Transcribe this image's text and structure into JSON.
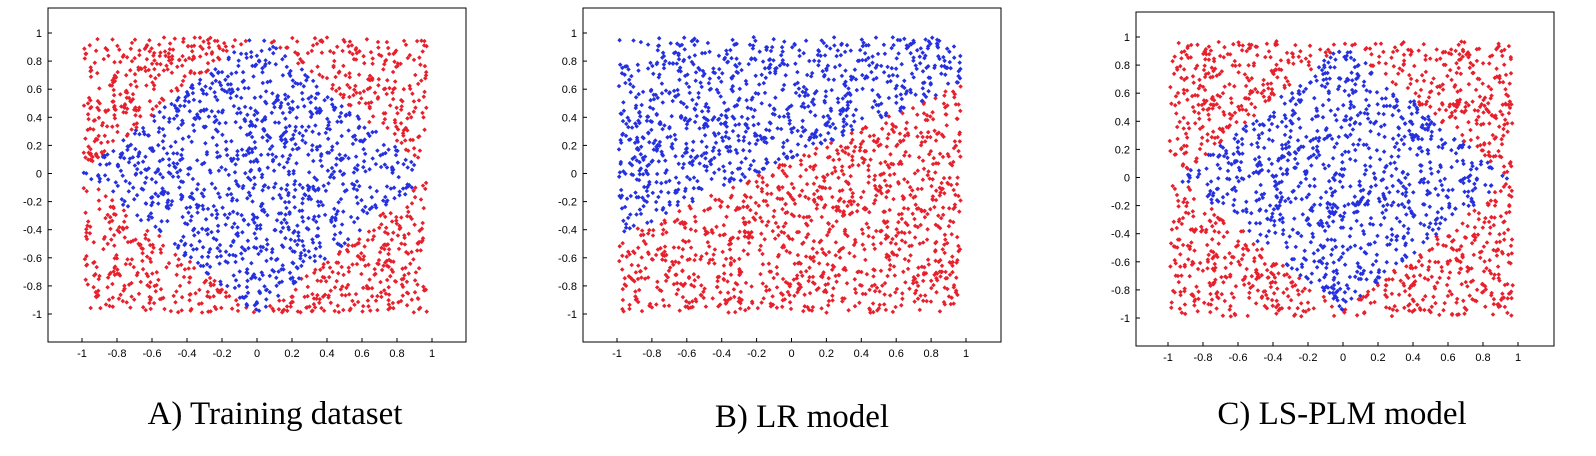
{
  "colors": {
    "positive": "#e8202c",
    "negative": "#2530e0"
  },
  "chart_data": [
    {
      "type": "scatter",
      "title": "",
      "caption": "A) Training dataset",
      "xlabel": "",
      "ylabel": "",
      "xlim": [
        -1,
        1
      ],
      "ylim": [
        -1,
        1
      ],
      "xticks": [
        "-1",
        "-0.8",
        "-0.6",
        "-0.4",
        "-0.2",
        "0",
        "0.2",
        "0.4",
        "0.6",
        "0.8",
        "1"
      ],
      "yticks": [
        "1",
        "0.8",
        "0.6",
        "0.4",
        "0.2",
        "0",
        "-0.2",
        "-0.4",
        "-0.6",
        "-0.8",
        "-1"
      ],
      "grid": false,
      "n_points": 2000,
      "boundary": "blue points inside the diamond |x| + |y| < 1, red points outside",
      "series": [
        {
          "color": "red",
          "region": "|x| + |y| >= 1"
        },
        {
          "color": "blue",
          "region": "|x| + |y| < 1"
        }
      ]
    },
    {
      "type": "scatter",
      "title": "",
      "caption": "B) LR model",
      "xlabel": "",
      "ylabel": "",
      "xlim": [
        -1,
        1
      ],
      "ylim": [
        -1,
        1
      ],
      "xticks": [
        "-1",
        "-0.8",
        "-0.6",
        "-0.4",
        "-0.2",
        "0",
        "0.2",
        "0.4",
        "0.6",
        "0.8",
        "1"
      ],
      "yticks": [
        "1",
        "0.8",
        "0.6",
        "0.4",
        "0.2",
        "0",
        "-0.2",
        "-0.4",
        "-0.6",
        "-0.8",
        "-1"
      ],
      "grid": false,
      "n_points": 2000,
      "boundary": "linear boundary y = 0.55 x + 0.1; blue above, red below",
      "series": [
        {
          "color": "red",
          "region": "y < 0.55x + 0.1"
        },
        {
          "color": "blue",
          "region": "y >= 0.55x + 0.1"
        }
      ]
    },
    {
      "type": "scatter",
      "title": "",
      "caption": "C) LS-PLM model",
      "xlabel": "",
      "ylabel": "",
      "xlim": [
        -1,
        1
      ],
      "ylim": [
        -1,
        1
      ],
      "xticks": [
        "-1",
        "-0.8",
        "-0.6",
        "-0.4",
        "-0.2",
        "0",
        "0.2",
        "0.4",
        "0.6",
        "0.8",
        "1"
      ],
      "yticks": [
        "1",
        "0.8",
        "0.6",
        "0.4",
        "0.2",
        "0",
        "-0.2",
        "-0.4",
        "-0.6",
        "-0.8",
        "-1"
      ],
      "grid": false,
      "n_points": 2000,
      "boundary": "approximately the diamond |x| + |y| < 0.95, blue inside, red outside",
      "series": [
        {
          "color": "red",
          "region": "|x| + |y| >= 0.95"
        },
        {
          "color": "blue",
          "region": "|x| + |y| < 0.95"
        }
      ]
    }
  ]
}
